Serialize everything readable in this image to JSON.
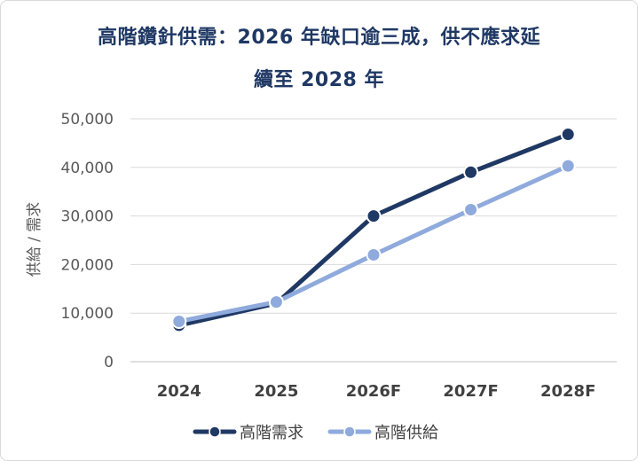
{
  "chart_data": {
    "type": "line",
    "title": "高階鑽針供需：2026 年缺口逾三成，供不應求延",
    "subtitle": "續至 2028 年",
    "ylabel": "供給 / 需求",
    "xlabel": "",
    "categories": [
      "2024",
      "2025",
      "2026F",
      "2027F",
      "2028F"
    ],
    "ylim": [
      0,
      50000
    ],
    "yticks": [
      "0",
      "10,000",
      "20,000",
      "30,000",
      "40,000",
      "50,000"
    ],
    "grid": true,
    "legend_position": "bottom",
    "series": [
      {
        "name": "高階需求",
        "values": [
          7500,
          12000,
          30000,
          39000,
          46800
        ],
        "color": "#1f3864"
      },
      {
        "name": "高階供給",
        "values": [
          8300,
          12300,
          22000,
          31300,
          40300
        ],
        "color": "#8faadc"
      }
    ]
  }
}
